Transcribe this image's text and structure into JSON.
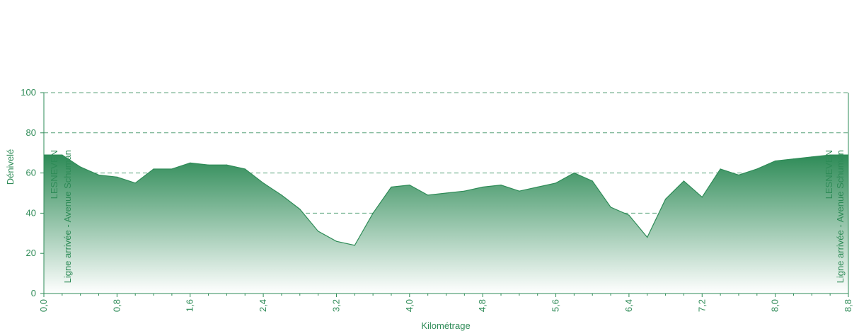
{
  "chart_data": {
    "type": "area",
    "xlabel": "Kilométrage",
    "ylabel": "Dénivelé",
    "xlim": [
      0,
      8.8
    ],
    "ylim": [
      0,
      100
    ],
    "x_ticks": [
      "0,0",
      "0,8",
      "1,6",
      "2,4",
      "3,2",
      "4,0",
      "4,8",
      "5,6",
      "6,4",
      "7,2",
      "8,0",
      "8,8"
    ],
    "y_ticks": [
      "0",
      "20",
      "40",
      "60",
      "80",
      "100"
    ],
    "grid": "horizontal dashed",
    "series": [
      {
        "x": [
          0.0,
          0.2,
          0.4,
          0.6,
          0.8,
          1.0,
          1.2,
          1.4,
          1.6,
          1.8,
          2.0,
          2.2,
          2.4,
          2.6,
          2.8,
          3.0,
          3.2,
          3.4,
          3.6,
          3.8,
          4.0,
          4.2,
          4.4,
          4.6,
          4.8,
          5.0,
          5.2,
          5.4,
          5.6,
          5.8,
          6.0,
          6.2,
          6.4,
          6.6,
          6.8,
          7.0,
          7.2,
          7.4,
          7.6,
          7.8,
          8.0,
          8.2,
          8.4,
          8.6,
          8.8
        ],
        "values": [
          69,
          69,
          63,
          59,
          58,
          55,
          62,
          62,
          65,
          64,
          64,
          62,
          55,
          49,
          42,
          31,
          26,
          24,
          40,
          53,
          54,
          49,
          50,
          51,
          53,
          54,
          51,
          53,
          55,
          60,
          56,
          43,
          39,
          28,
          47,
          56,
          48,
          62,
          59,
          62,
          66,
          67,
          68,
          69,
          69
        ]
      }
    ],
    "annotations": [
      {
        "x": 0.0,
        "lines": [
          "LESNEVEN",
          "Ligne arrivée - Avenue Schuman"
        ]
      },
      {
        "x": 8.8,
        "lines": [
          "LESNEVEN",
          "Ligne arrivée - Avenue Schuman"
        ]
      }
    ],
    "colors": {
      "accent": "#2e8b57",
      "fill_top": "#2e8b57",
      "fill_bottom": "#ffffff",
      "grid": "#2e8b57"
    }
  }
}
